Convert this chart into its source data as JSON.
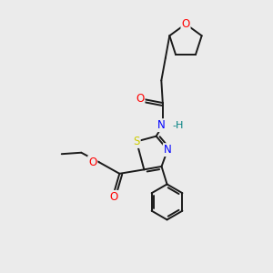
{
  "background_color": "#ebebeb",
  "bond_color": "#1a1a1a",
  "atom_colors": {
    "O": "#ff0000",
    "N": "#0000ff",
    "S": "#cccc00",
    "H_color": "#008080",
    "C": "#1a1a1a"
  },
  "font_size": 8.5,
  "line_width": 1.4
}
